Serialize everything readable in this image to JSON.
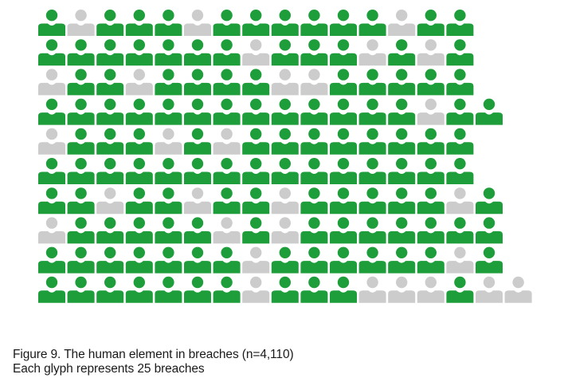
{
  "chart_data": {
    "type": "icon-array",
    "unit_per_glyph": 25,
    "n": 4110,
    "legend": "none",
    "colors": {
      "human_element": "#1e9e3a",
      "other": "#cccccc"
    },
    "rows": [
      "GLGGGLGGGGGGLGG",
      "GGGGGGGLGGGLGLG",
      "LGGLGGGGLLGGGGG",
      "GGGGGGGGGGGGGLGG",
      "LGGGLGLGGGGGGGG",
      "GGGGGGGGGGGGGGG",
      "GGLGGLGGLGGGGGLG",
      "LGGGGGLGLGGGGGGG",
      "GGGGGGGLGGGGGGLG",
      "GGGGGGGLGGGLLLGLL"
    ]
  },
  "caption": {
    "line1": "Figure 9. The human element in breaches (n=4,110)",
    "line2": "Each glyph represents 25 breaches"
  }
}
